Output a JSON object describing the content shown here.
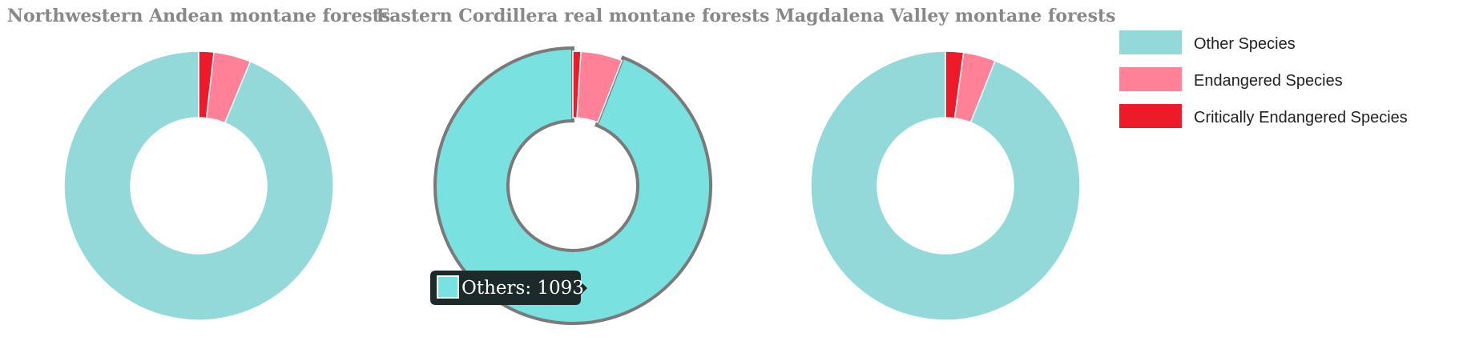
{
  "chart_data": [
    {
      "type": "pie",
      "title": "Northwestern Andean montane forests",
      "categories": [
        "Other Species",
        "Endangered Species",
        "Critically Endangered Species"
      ],
      "values": [
        1093,
        52,
        21
      ]
    },
    {
      "type": "pie",
      "title": "Eastern Cordillera real montane forests",
      "categories": [
        "Other Species",
        "Endangered Species",
        "Critically Endangered Species"
      ],
      "values": [
        1093,
        58,
        11
      ],
      "highlighted": "Other Species"
    },
    {
      "type": "pie",
      "title": "Magdalena Valley montane forests",
      "categories": [
        "Other Species",
        "Endangered Species",
        "Critically Endangered Species"
      ],
      "values": [
        1093,
        45,
        25
      ]
    }
  ],
  "legend": [
    {
      "label": "Other Species",
      "color": "#94D9D9"
    },
    {
      "label": "Endangered Species",
      "color": "#FF8197"
    },
    {
      "label": "Critically Endangered Species",
      "color": "#ED1B2A"
    }
  ],
  "highlight_color": "#7AE1E1",
  "tooltip": {
    "label": "Others: 1093",
    "color": "#7AE1E1"
  }
}
